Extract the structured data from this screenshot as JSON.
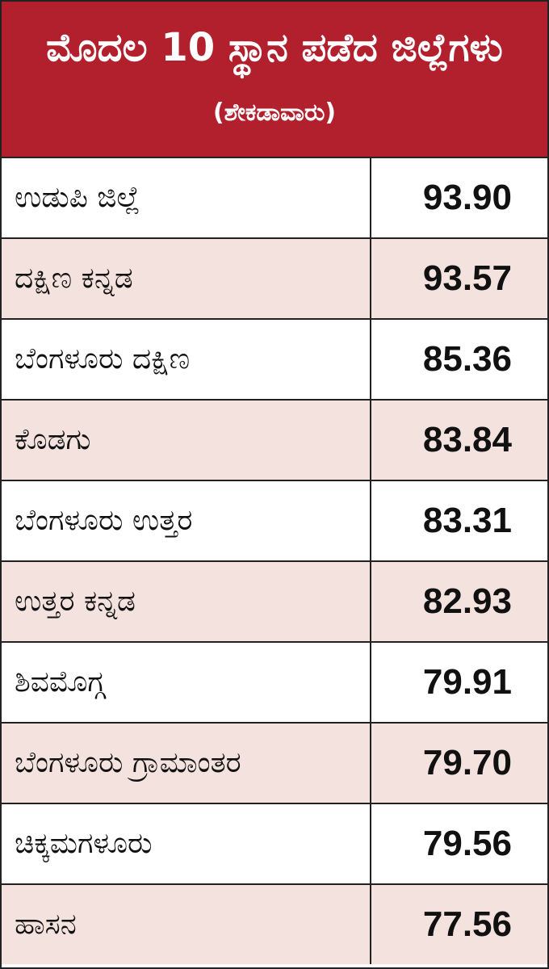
{
  "header": {
    "title": "ಮೊದಲ 10 ಸ್ಥಾನ ಪಡೆದ ಜಿಲ್ಲೆಗಳು",
    "subtitle": "(ಶೇಕಡಾವಾರು)"
  },
  "table": {
    "rows": [
      [
        "ಉಡುಪಿ ಜಿಲ್ಲೆ",
        "93.90"
      ],
      [
        "ದಕ್ಷಿಣ ಕನ್ನಡ",
        "93.57"
      ],
      [
        "ಬೆಂಗಳೂರು ದಕ್ಷಿಣ",
        "85.36"
      ],
      [
        "ಕೊಡಗು",
        "83.84"
      ],
      [
        "ಬೆಂಗಳೂರು ಉತ್ತರ",
        "83.31"
      ],
      [
        "ಉತ್ತರ ಕನ್ನಡ",
        "82.93"
      ],
      [
        "ಶಿವಮೊಗ್ಗ",
        "79.91"
      ],
      [
        "ಬೆಂಗಳೂರು ಗ್ರಾಮಾಂತರ",
        "79.70"
      ],
      [
        "ಚಿಕ್ಕಮಗಳೂರು",
        "79.56"
      ],
      [
        "ಹಾಸನ",
        "77.56"
      ]
    ]
  }
}
